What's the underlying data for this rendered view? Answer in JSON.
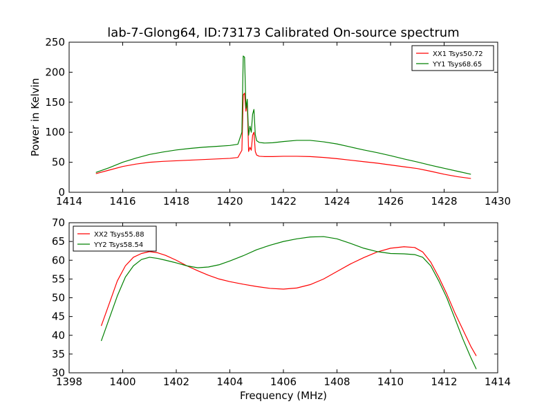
{
  "figure": {
    "title": "lab-7-Glong64, ID:73173 Calibrated On-source spectrum"
  },
  "chart_data": [
    {
      "type": "line",
      "title": "lab-7-Glong64, ID:73173 Calibrated On-source spectrum",
      "xlabel": "",
      "ylabel": "Power in Kelvin",
      "xlim": [
        1414,
        1430
      ],
      "ylim": [
        0,
        250
      ],
      "xticks": [
        "1414",
        "1416",
        "1418",
        "1420",
        "1422",
        "1424",
        "1426",
        "1428",
        "1430"
      ],
      "yticks": [
        "0",
        "50",
        "100",
        "150",
        "200",
        "250"
      ],
      "grid": false,
      "legend_position": "top-right",
      "series": [
        {
          "name": "XX1 Tsys50.72",
          "color": "#ff0000",
          "x": [
            1415.0,
            1415.5,
            1416.0,
            1416.5,
            1417.0,
            1417.5,
            1418.0,
            1418.5,
            1419.0,
            1419.5,
            1420.0,
            1420.3,
            1420.45,
            1420.5,
            1420.55,
            1420.6,
            1420.65,
            1420.7,
            1420.75,
            1420.8,
            1420.85,
            1420.9,
            1420.95,
            1421.0,
            1421.1,
            1421.3,
            1421.6,
            1422.0,
            1422.5,
            1423.0,
            1423.5,
            1424.0,
            1424.5,
            1425.0,
            1425.5,
            1426.0,
            1426.5,
            1427.0,
            1427.5,
            1428.0,
            1428.5,
            1429.0
          ],
          "y": [
            31,
            37,
            43,
            47,
            50,
            51.5,
            52.5,
            53.5,
            54.5,
            55.5,
            56.5,
            58,
            70,
            162,
            165,
            135,
            150,
            68,
            75,
            70,
            95,
            100,
            68,
            62,
            60,
            59.5,
            59.5,
            60,
            60,
            59.5,
            58,
            56,
            53.5,
            51,
            48.5,
            45.5,
            42.5,
            39.5,
            35,
            30,
            26,
            23
          ]
        },
        {
          "name": "YY1 Tsys68.65",
          "color": "#008000",
          "x": [
            1415.0,
            1415.5,
            1416.0,
            1416.5,
            1417.0,
            1417.5,
            1418.0,
            1418.5,
            1419.0,
            1419.5,
            1420.0,
            1420.3,
            1420.45,
            1420.5,
            1420.55,
            1420.6,
            1420.65,
            1420.7,
            1420.75,
            1420.8,
            1420.85,
            1420.9,
            1420.95,
            1421.0,
            1421.1,
            1421.3,
            1421.6,
            1422.0,
            1422.5,
            1423.0,
            1423.5,
            1424.0,
            1424.5,
            1425.0,
            1425.5,
            1426.0,
            1426.5,
            1427.0,
            1427.5,
            1428.0,
            1428.5,
            1429.0
          ],
          "y": [
            33,
            41,
            50,
            57,
            63,
            67,
            70.5,
            73,
            75,
            76.5,
            78,
            80,
            100,
            227,
            225,
            140,
            155,
            95,
            110,
            100,
            130,
            138,
            96,
            86,
            83,
            82,
            82.5,
            84.5,
            86.5,
            86.5,
            84,
            80.5,
            75.5,
            70.5,
            66,
            61,
            55.5,
            50.5,
            45,
            40,
            35,
            30
          ]
        }
      ]
    },
    {
      "type": "line",
      "title": "",
      "xlabel": "Frequency (MHz)",
      "ylabel": "",
      "xlim": [
        1398,
        1414
      ],
      "ylim": [
        30,
        70
      ],
      "xticks": [
        "1398",
        "1400",
        "1402",
        "1404",
        "1406",
        "1408",
        "1410",
        "1412",
        "1414"
      ],
      "yticks": [
        "30",
        "35",
        "40",
        "45",
        "50",
        "55",
        "60",
        "65",
        "70"
      ],
      "grid": false,
      "legend_position": "top-left",
      "series": [
        {
          "name": "XX2 Tsys55.88",
          "color": "#ff0000",
          "x": [
            1399.2,
            1399.5,
            1399.8,
            1400.1,
            1400.4,
            1400.7,
            1401.0,
            1401.3,
            1401.6,
            1402.0,
            1402.4,
            1402.8,
            1403.2,
            1403.6,
            1404.0,
            1404.5,
            1405.0,
            1405.5,
            1406.0,
            1406.5,
            1407.0,
            1407.5,
            1408.0,
            1408.5,
            1409.0,
            1409.5,
            1410.0,
            1410.5,
            1410.9,
            1411.2,
            1411.5,
            1411.8,
            1412.1,
            1412.4,
            1412.7,
            1413.0,
            1413.2
          ],
          "y": [
            42.5,
            48.5,
            54.5,
            58.5,
            60.8,
            61.8,
            62.3,
            62,
            61.3,
            60,
            58.5,
            57.2,
            56,
            55,
            54.3,
            53.6,
            53,
            52.5,
            52.3,
            52.6,
            53.5,
            55,
            57,
            59,
            60.7,
            62.2,
            63.2,
            63.6,
            63.4,
            62.2,
            59.5,
            55.5,
            51,
            46,
            41.5,
            37,
            34.5
          ]
        },
        {
          "name": "YY2 Tsys58.54",
          "color": "#008000",
          "x": [
            1399.2,
            1399.5,
            1399.8,
            1400.1,
            1400.4,
            1400.7,
            1401.0,
            1401.3,
            1401.6,
            1402.0,
            1402.4,
            1402.8,
            1403.2,
            1403.6,
            1404.0,
            1404.5,
            1405.0,
            1405.5,
            1406.0,
            1406.5,
            1407.0,
            1407.5,
            1408.0,
            1408.5,
            1409.0,
            1409.5,
            1410.0,
            1410.5,
            1410.9,
            1411.2,
            1411.5,
            1411.8,
            1412.1,
            1412.4,
            1412.7,
            1413.0,
            1413.2
          ],
          "y": [
            38.5,
            44.5,
            50.5,
            55.5,
            58.5,
            60.2,
            60.8,
            60.5,
            60,
            59.3,
            58.5,
            58,
            58.2,
            58.8,
            59.8,
            61.2,
            62.8,
            64,
            65,
            65.7,
            66.2,
            66.3,
            65.7,
            64.5,
            63.2,
            62.3,
            61.8,
            61.7,
            61.5,
            60.8,
            58.5,
            54.5,
            50,
            44.5,
            39,
            34,
            31
          ]
        }
      ]
    }
  ]
}
